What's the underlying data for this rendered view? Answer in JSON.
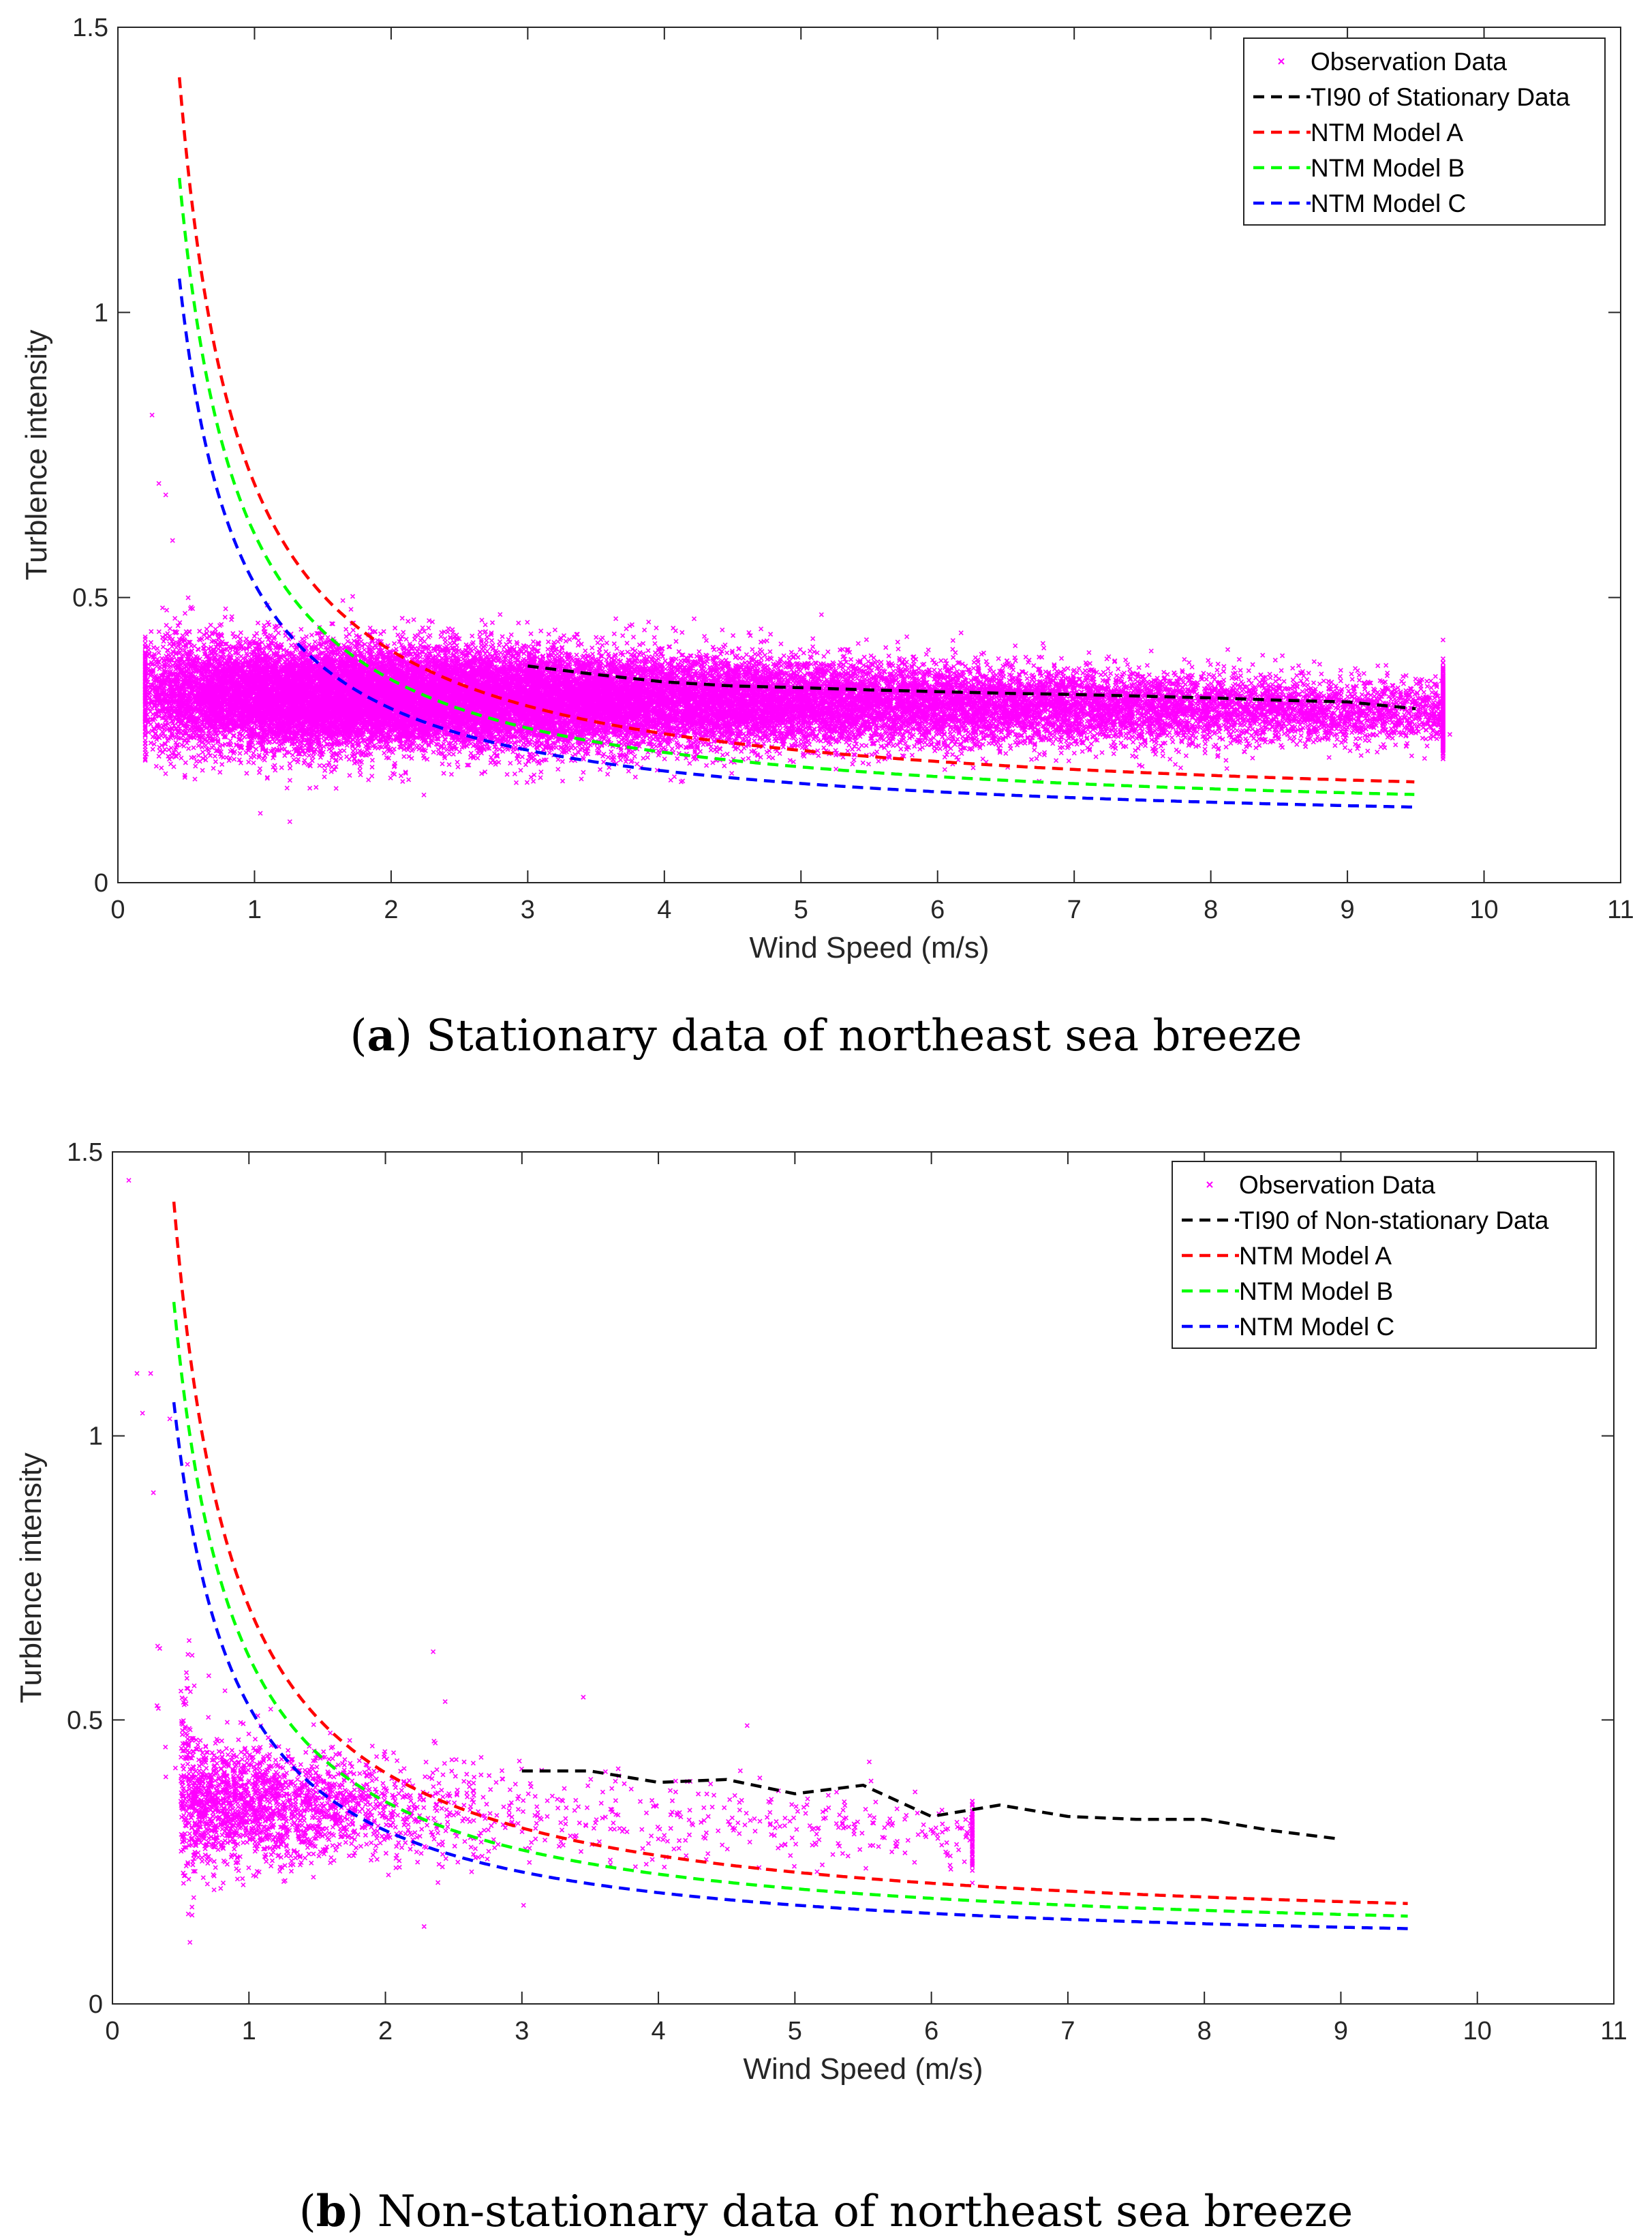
{
  "colors": {
    "observation": "#ff00ff",
    "ti90": "#000000",
    "model_a": "#ff0000",
    "model_b": "#00ff00",
    "model_c": "#0000ff",
    "axis": "#262626"
  },
  "chart_data": [
    {
      "id": "a",
      "type": "scatter",
      "caption_letter": "a",
      "caption_text": "Stationary data of northeast sea breeze",
      "xlabel": "Wind Speed (m/s)",
      "ylabel": "Turblence intensity",
      "xlim": [
        0,
        11
      ],
      "ylim": [
        0,
        1.5
      ],
      "xticks": [
        0,
        1,
        2,
        3,
        4,
        5,
        6,
        7,
        8,
        9,
        10,
        11
      ],
      "yticks": [
        0,
        0.5,
        1,
        1.5
      ],
      "ytick_labels": [
        "0",
        "0.5",
        "1",
        "1.5"
      ],
      "legend_position": "top-right",
      "legend": [
        "Observation Data",
        "TI90 of Stationary Data",
        "NTM Model A",
        "NTM Model B",
        "NTM Model C"
      ],
      "observation_cloud": {
        "x_range": [
          0.2,
          9.7
        ],
        "ti_center_low_speed": 0.33,
        "ti_center_high_speed": 0.3,
        "ti_spread": 0.09,
        "density": "high",
        "outliers": [
          [
            0.25,
            0.82
          ],
          [
            0.3,
            0.7
          ],
          [
            0.35,
            0.68
          ],
          [
            0.4,
            0.6
          ],
          [
            5.15,
            0.47
          ],
          [
            9.75,
            0.26
          ]
        ]
      },
      "series": [
        {
          "name": "TI90 of Stationary Data",
          "color_key": "ti90",
          "x": [
            3.0,
            3.5,
            4.0,
            4.5,
            5.0,
            5.5,
            6.0,
            6.5,
            7.0,
            7.5,
            8.0,
            8.5,
            9.0,
            9.5
          ],
          "y": [
            0.38,
            0.365,
            0.352,
            0.345,
            0.342,
            0.338,
            0.335,
            0.332,
            0.33,
            0.327,
            0.324,
            0.32,
            0.317,
            0.305
          ]
        },
        {
          "name": "NTM Model A",
          "color_key": "model_a",
          "formula": {
            "iref": 0.12,
            "b": 3.8,
            "c": 1.28
          },
          "x_range": [
            0.45,
            9.5
          ]
        },
        {
          "name": "NTM Model B",
          "color_key": "model_b",
          "formula": {
            "iref": 0.105,
            "b": 3.8,
            "c": 1.28
          },
          "x_range": [
            0.45,
            9.5
          ]
        },
        {
          "name": "NTM Model C",
          "color_key": "model_c",
          "formula": {
            "iref": 0.09,
            "b": 3.8,
            "c": 1.28
          },
          "x_range": [
            0.45,
            9.5
          ]
        }
      ]
    },
    {
      "id": "b",
      "type": "scatter",
      "caption_letter": "b",
      "caption_text": "Non-stationary data of northeast sea breeze",
      "xlabel": "Wind Speed (m/s)",
      "ylabel": "Turblence intensity",
      "xlim": [
        0,
        11
      ],
      "ylim": [
        0,
        1.5
      ],
      "xticks": [
        0,
        1,
        2,
        3,
        4,
        5,
        6,
        7,
        8,
        9,
        10,
        11
      ],
      "yticks": [
        0,
        0.5,
        1,
        1.5
      ],
      "ytick_labels": [
        "0",
        "0.5",
        "1",
        "1.5"
      ],
      "legend_position": "top-right",
      "legend": [
        "Observation Data",
        "TI90 of Non-stationary Data",
        "NTM Model A",
        "NTM Model B",
        "NTM Model C"
      ],
      "observation_cloud": {
        "x_range": [
          0.1,
          6.3
        ],
        "ti_center_low_speed": 0.36,
        "ti_center_high_speed": 0.3,
        "ti_spread": 0.1,
        "density": "low",
        "outliers": [
          [
            0.12,
            1.45
          ],
          [
            0.18,
            1.11
          ],
          [
            0.28,
            1.11
          ],
          [
            0.22,
            1.04
          ],
          [
            0.42,
            1.03
          ],
          [
            0.3,
            0.9
          ],
          [
            4.65,
            0.49
          ],
          [
            3.45,
            0.54
          ],
          [
            2.35,
            0.62
          ],
          [
            0.55,
            0.95
          ]
        ]
      },
      "series": [
        {
          "name": "TI90 of Non-stationary Data",
          "color_key": "ti90",
          "x": [
            3.0,
            3.5,
            4.0,
            4.5,
            5.0,
            5.5,
            6.0,
            6.5,
            7.0,
            7.5,
            8.0,
            8.5,
            9.0
          ],
          "y": [
            0.41,
            0.41,
            0.39,
            0.395,
            0.37,
            0.385,
            0.33,
            0.35,
            0.33,
            0.325,
            0.325,
            0.305,
            0.29
          ]
        },
        {
          "name": "NTM Model A",
          "color_key": "model_a",
          "formula": {
            "iref": 0.12,
            "b": 3.8,
            "c": 1.28
          },
          "x_range": [
            0.45,
            9.5
          ]
        },
        {
          "name": "NTM Model B",
          "color_key": "model_b",
          "formula": {
            "iref": 0.105,
            "b": 3.8,
            "c": 1.28
          },
          "x_range": [
            0.45,
            9.5
          ]
        },
        {
          "name": "NTM Model C",
          "color_key": "model_c",
          "formula": {
            "iref": 0.09,
            "b": 3.8,
            "c": 1.28
          },
          "x_range": [
            0.45,
            9.5
          ]
        }
      ]
    }
  ]
}
